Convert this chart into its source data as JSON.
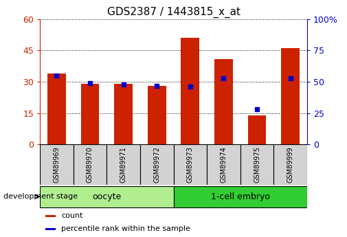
{
  "title": "GDS2387 / 1443815_x_at",
  "samples": [
    "GSM89969",
    "GSM89970",
    "GSM89971",
    "GSM89972",
    "GSM89973",
    "GSM89974",
    "GSM89975",
    "GSM89999"
  ],
  "counts": [
    34,
    29,
    29,
    28,
    51,
    41,
    14,
    46
  ],
  "percentile_ranks": [
    55,
    49,
    48,
    47,
    46,
    53,
    28,
    53
  ],
  "groups": [
    {
      "label": "oocyte",
      "indices": [
        0,
        1,
        2,
        3
      ],
      "color": "#90ee90"
    },
    {
      "label": "1-cell embryo",
      "indices": [
        4,
        5,
        6,
        7
      ],
      "color": "#32cd32"
    }
  ],
  "bar_color": "#cc2200",
  "dot_color": "#0000cc",
  "ylim_left": [
    0,
    60
  ],
  "ylim_right": [
    0,
    100
  ],
  "yticks_left": [
    0,
    15,
    30,
    45,
    60
  ],
  "yticks_right": [
    0,
    25,
    50,
    75,
    100
  ],
  "legend_items": [
    {
      "label": "count",
      "color": "#cc2200"
    },
    {
      "label": "percentile rank within the sample",
      "color": "#0000cc"
    }
  ],
  "dev_stage_label": "development stage",
  "left_axis_color": "#cc2200",
  "right_axis_color": "#0000cc",
  "bar_width": 0.55,
  "sample_box_color": "#d3d3d3",
  "oocyte_color": "#b0ee90",
  "embryo_color": "#32cd32"
}
